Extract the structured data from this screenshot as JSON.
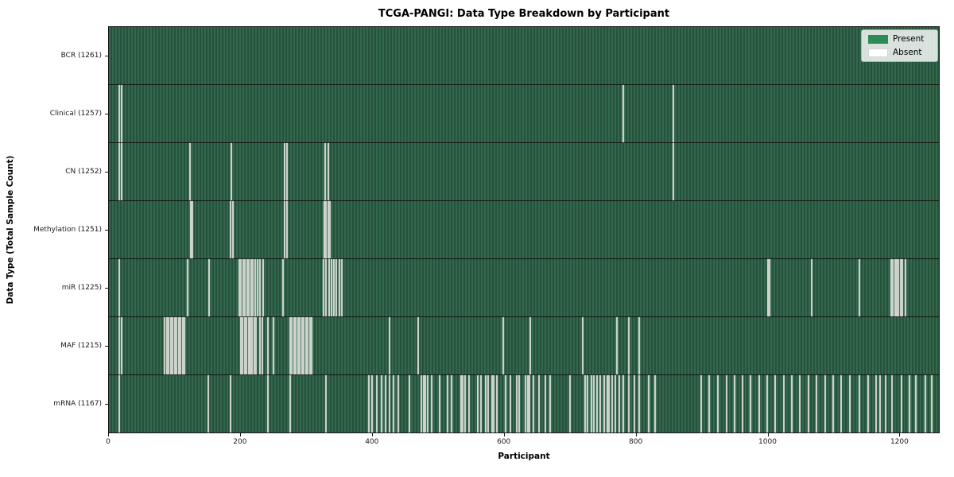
{
  "chart_data": {
    "type": "heatmap",
    "title": "TCGA-PANGI: Data Type Breakdown by Participant",
    "xlabel": "Participant",
    "ylabel": "Data Type (Total Sample Count)",
    "x_min": 0,
    "x_max": 1261,
    "x_ticks": [
      0,
      200,
      400,
      600,
      800,
      1000,
      1200
    ],
    "grid": false,
    "colors": {
      "present": "#2e8b57",
      "absent": "#ffffff",
      "cell_stripe_light": "#33684d",
      "cell_stripe_dark": "#26523c",
      "row_separator": "#141414"
    },
    "legend": {
      "position": "upper right",
      "entries": [
        {
          "label": "Present",
          "color": "#2e8b57"
        },
        {
          "label": "Absent",
          "color": "#ffffff"
        }
      ]
    },
    "rows": [
      {
        "label": "BCR (1261)",
        "data_type": "BCR",
        "present_count": 1261,
        "absent_count": 0,
        "absent_participants": []
      },
      {
        "label": "Clinical (1257)",
        "data_type": "Clinical",
        "present_count": 1257,
        "absent_count": 4,
        "absent_participants": [
          16,
          19,
          782,
          857
        ]
      },
      {
        "label": "CN (1252)",
        "data_type": "CN",
        "present_count": 1252,
        "absent_count": 9,
        "absent_participants": [
          16,
          19,
          123,
          186,
          267,
          271,
          329,
          333,
          857
        ]
      },
      {
        "label": "Methylation (1251)",
        "data_type": "Methylation",
        "present_count": 1251,
        "absent_count": 10,
        "absent_participants": [
          124,
          127,
          185,
          188,
          267,
          270,
          327,
          330,
          333,
          336
        ]
      },
      {
        "label": "miR (1225)",
        "data_type": "miR",
        "present_count": 1225,
        "absent_count": 36,
        "absent_participants": [
          16,
          120,
          152,
          198,
          201,
          204,
          207,
          210,
          213,
          216,
          219,
          222,
          226,
          230,
          234,
          265,
          326,
          330,
          334,
          338,
          342,
          346,
          350,
          354,
          1001,
          1004,
          1068,
          1140,
          1188,
          1191,
          1194,
          1197,
          1200,
          1203,
          1206,
          1210
        ]
      },
      {
        "label": "MAF (1215)",
        "data_type": "MAF",
        "present_count": 1215,
        "absent_count": 46,
        "absent_participants": [
          16,
          19,
          85,
          88,
          91,
          94,
          97,
          100,
          103,
          106,
          109,
          112,
          115,
          200,
          203,
          206,
          209,
          212,
          215,
          218,
          221,
          224,
          230,
          233,
          241,
          250,
          275,
          278,
          281,
          284,
          287,
          290,
          293,
          296,
          299,
          302,
          305,
          308,
          426,
          470,
          599,
          640,
          720,
          772,
          790,
          806
        ]
      },
      {
        "label": "mRNA (1167)",
        "data_type": "mRNA",
        "present_count": 1167,
        "absent_count": 94,
        "absent_participants": [
          16,
          151,
          185,
          242,
          275,
          330,
          395,
          400,
          407,
          414,
          420,
          426,
          432,
          440,
          457,
          475,
          478,
          481,
          484,
          490,
          503,
          515,
          520,
          535,
          538,
          541,
          547,
          560,
          565,
          572,
          576,
          582,
          585,
          590,
          603,
          610,
          620,
          623,
          633,
          636,
          639,
          645,
          653,
          663,
          670,
          700,
          723,
          727,
          733,
          737,
          742,
          747,
          752,
          757,
          760,
          765,
          770,
          775,
          782,
          790,
          798,
          806,
          820,
          830,
          900,
          912,
          925,
          938,
          950,
          963,
          975,
          988,
          1000,
          1012,
          1025,
          1038,
          1050,
          1063,
          1075,
          1088,
          1100,
          1113,
          1126,
          1140,
          1153,
          1166,
          1172,
          1180,
          1190,
          1204,
          1216,
          1226,
          1240,
          1250
        ]
      }
    ]
  }
}
